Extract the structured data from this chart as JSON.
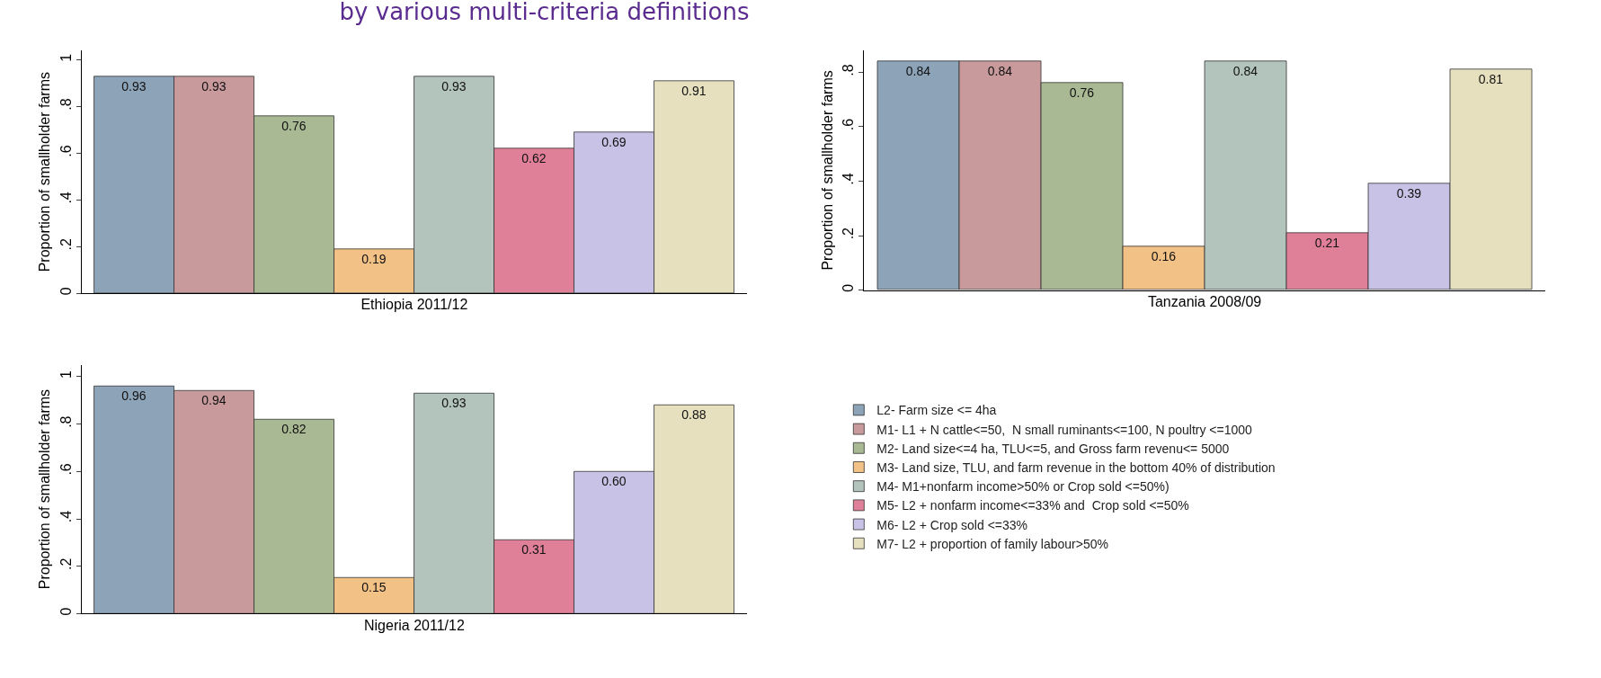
{
  "chart_data": [
    {
      "type": "bar",
      "title": "by various multi-criteria definitions",
      "xlabel": "Ethiopia 2011/12",
      "ylabel": "Proportion of smallholder farms",
      "categories": [
        null
      ],
      "ylim": [
        0,
        1.04
      ],
      "yticks": [
        0,
        {
          "value": 0.2,
          "label": ".2"
        },
        {
          "value": 0.4,
          "label": ".4"
        },
        {
          "value": 0.6,
          "label": ".6"
        },
        {
          "value": 0.8,
          "label": ".8"
        },
        1
      ],
      "data_labels": true,
      "legend": false,
      "series": [
        {
          "color": "#8ca3b8",
          "values": [
            0.93
          ]
        },
        {
          "color": "#c99a9c",
          "values": [
            0.93
          ]
        },
        {
          "color": "#a8b994",
          "values": [
            0.76
          ]
        },
        {
          "color": "#f2c185",
          "values": [
            0.19
          ]
        },
        {
          "color": "#b3c4bd",
          "values": [
            0.93
          ]
        },
        {
          "color": "#e08098",
          "values": [
            0.62
          ]
        },
        {
          "color": "#c8c3e6",
          "values": [
            0.69
          ]
        },
        {
          "color": "#e6e0bf",
          "values": [
            0.91
          ]
        }
      ]
    },
    {
      "type": "bar",
      "xlabel": "Tanzania 2008/09",
      "ylabel": "Proportion of smallholder farms",
      "categories": [
        null
      ],
      "ylim": [
        0,
        0.88
      ],
      "yticks": [
        0,
        {
          "value": 0.2,
          "label": ".2"
        },
        {
          "value": 0.4,
          "label": ".4"
        },
        {
          "value": 0.6,
          "label": ".6"
        },
        {
          "value": 0.8,
          "label": ".8"
        }
      ],
      "data_labels": true,
      "legend": false,
      "series": [
        {
          "color": "#8ca3b8",
          "values": [
            0.84
          ]
        },
        {
          "color": "#c99a9c",
          "values": [
            0.84
          ]
        },
        {
          "color": "#a8b994",
          "values": [
            0.76
          ]
        },
        {
          "color": "#f2c185",
          "values": [
            0.16
          ]
        },
        {
          "color": "#b3c4bd",
          "values": [
            0.84
          ]
        },
        {
          "color": "#e08098",
          "values": [
            0.21
          ]
        },
        {
          "color": "#c8c3e6",
          "values": [
            0.39
          ]
        },
        {
          "color": "#e6e0bf",
          "values": [
            0.81
          ]
        }
      ]
    },
    {
      "type": "bar",
      "xlabel": "Nigeria 2011/12",
      "ylabel": "Proportion of smallholder farms",
      "categories": [
        null
      ],
      "ylim": [
        0,
        1.05
      ],
      "yticks": [
        0,
        {
          "value": 0.2,
          "label": ".2"
        },
        {
          "value": 0.4,
          "label": ".4"
        },
        {
          "value": 0.6,
          "label": ".6"
        },
        {
          "value": 0.8,
          "label": ".8"
        },
        1
      ],
      "data_labels": true,
      "legend": "right",
      "series": [
        {
          "name": "L2- Farm size <= 4ha",
          "color": "#8ca3b8",
          "values": [
            0.96
          ]
        },
        {
          "name": "M1- L1 + N cattle<=50,  N small ruminants<=100, N poultry <=1000",
          "color": "#c99a9c",
          "values": [
            0.94
          ]
        },
        {
          "name": "M2- Land size<=4 ha, TLU<=5, and Gross farm revenu<= 5000",
          "color": "#a8b994",
          "values": [
            0.82
          ]
        },
        {
          "name": "M3- Land size, TLU, and farm revenue in the bottom 40% of distribution",
          "color": "#f2c185",
          "values": [
            0.15
          ]
        },
        {
          "name": "M4- M1+nonfarm income>50% or Crop sold <=50%)",
          "color": "#b3c4bd",
          "values": [
            0.93
          ]
        },
        {
          "name": "M5- L2 + nonfarm income<=33% and  Crop sold <=50%",
          "color": "#e08098",
          "values": [
            0.31
          ]
        },
        {
          "name": "M6- L2 + Crop sold <=33%",
          "color": "#c8c3e6",
          "values": [
            0.6
          ],
          "value_labels": [
            "0.60"
          ]
        },
        {
          "name": "M7- L2 + proportion of family labour>50%",
          "color": "#e6e0bf",
          "values": [
            0.88
          ]
        }
      ]
    }
  ]
}
